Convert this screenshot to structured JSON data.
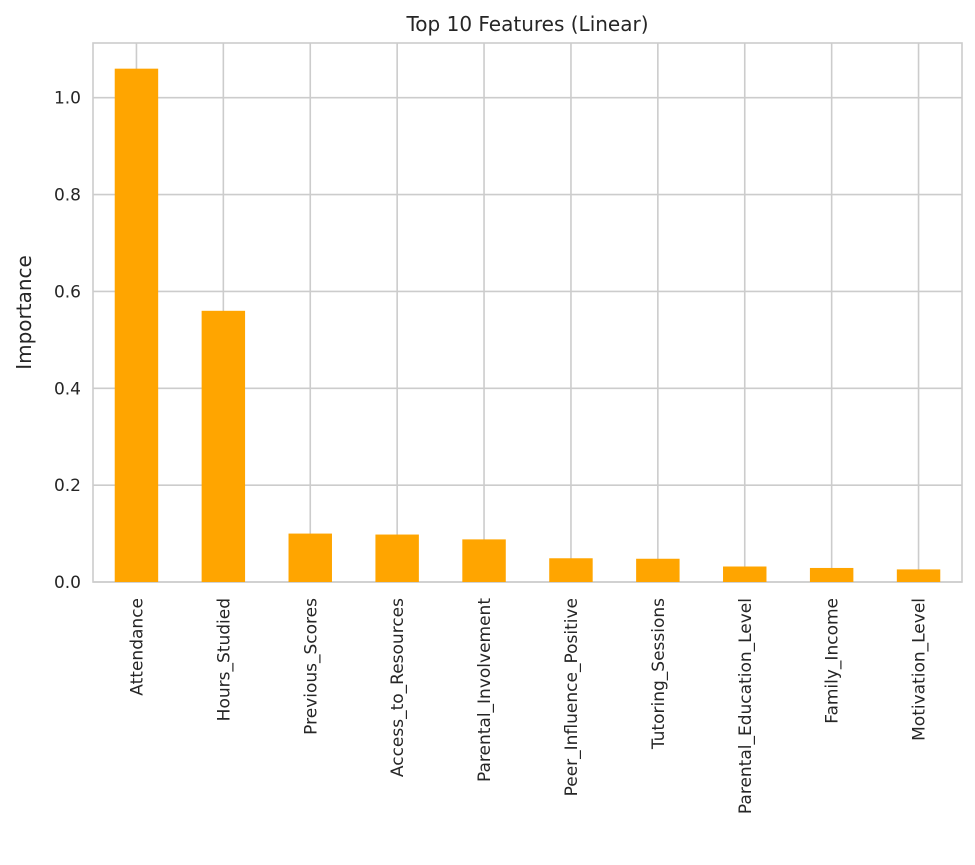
{
  "chart_data": {
    "type": "bar",
    "title": "Top 10 Features (Linear)",
    "xlabel": "",
    "ylabel": "Importance",
    "categories": [
      "Attendance",
      "Hours_Studied",
      "Previous_Scores",
      "Access_to_Resources",
      "Parental_Involvement",
      "Peer_Influence_Positive",
      "Tutoring_Sessions",
      "Parental_Education_Level",
      "Family_Income",
      "Motivation_Level"
    ],
    "values": [
      1.06,
      0.56,
      0.1,
      0.098,
      0.088,
      0.049,
      0.048,
      0.032,
      0.029,
      0.026
    ],
    "ylim": [
      0,
      1.113
    ],
    "yticks": [
      0.0,
      0.2,
      0.4,
      0.6,
      0.8,
      1.0
    ],
    "ytick_labels": [
      "0.0",
      "0.2",
      "0.4",
      "0.6",
      "0.8",
      "1.0"
    ],
    "grid": true,
    "legend": "none",
    "bar_color": "#ffa500",
    "grid_color": "#cccccc",
    "axis_color": "#cccccc"
  }
}
